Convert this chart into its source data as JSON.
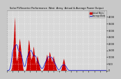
{
  "title": "Solar PV/Inverter Performance  West  Array  Actual & Average Power Output",
  "bg_color": "#c8c8c8",
  "plot_bg_color": "#d8d8d8",
  "grid_color": "#ffffff",
  "bar_color": "#cc0000",
  "avg_color": "#0000cc",
  "text_color": "#000000",
  "ylim": [
    0,
    4500
  ],
  "y_ticks": [
    0,
    500,
    1000,
    1500,
    2000,
    2500,
    3000,
    3500,
    4000
  ],
  "legend_actual": "Actual Watts",
  "legend_avg": "Average Watts",
  "data_values": [
    0,
    0,
    0,
    0,
    0,
    0,
    0,
    0,
    0,
    0,
    0,
    0,
    0,
    0,
    50,
    100,
    200,
    400,
    700,
    1000,
    1400,
    1800,
    2200,
    2600,
    3000,
    3400,
    4000,
    3600,
    2800,
    2000,
    1400,
    1000,
    800,
    700,
    800,
    900,
    1000,
    1200,
    1400,
    1600,
    1800,
    2000,
    2200,
    2400,
    2200,
    2000,
    1800,
    1600,
    1400,
    1200,
    1000,
    800,
    600,
    400,
    200,
    100,
    50,
    0,
    0,
    0,
    0,
    0,
    0,
    0,
    50,
    100,
    200,
    400,
    700,
    1000,
    1300,
    1600,
    1900,
    2100,
    2300,
    2200,
    2000,
    1800,
    1600,
    1400,
    1200,
    1000,
    900,
    800,
    900,
    1000,
    1100,
    1200,
    1400,
    1600,
    1800,
    1700,
    1500,
    1300,
    1100,
    900,
    700,
    500,
    600,
    700,
    800,
    900,
    1000,
    1100,
    1000,
    900,
    800,
    700,
    600,
    500,
    400,
    300,
    200,
    100,
    50,
    0,
    0,
    0,
    0,
    0,
    0,
    0,
    0,
    50,
    100,
    150,
    200,
    300,
    400,
    500,
    600,
    700,
    800,
    900,
    1000,
    1100,
    1200,
    1100,
    1000,
    900,
    800,
    700,
    900,
    1100,
    1300,
    1400,
    1300,
    1200,
    1100,
    1000,
    900,
    800,
    700,
    600,
    700,
    800,
    900,
    1000,
    1100,
    1000,
    900,
    800,
    700,
    600,
    500,
    400,
    300,
    200,
    100,
    50,
    0,
    0,
    0,
    0,
    0,
    0,
    0,
    0,
    0,
    0,
    0,
    0,
    0,
    0,
    50,
    100,
    200,
    300,
    400,
    500,
    600,
    700,
    800,
    900,
    800,
    700,
    600,
    500,
    400,
    300,
    200,
    100,
    50,
    0,
    0,
    0,
    0,
    0,
    0,
    0,
    0,
    0,
    0,
    0,
    0,
    0,
    0,
    0,
    0,
    0,
    0,
    0,
    0,
    0,
    0,
    0,
    0,
    0,
    0,
    0,
    0,
    0,
    0,
    0,
    0,
    0,
    0,
    0,
    0,
    0,
    0,
    0,
    0,
    0,
    0,
    0,
    0,
    0,
    0,
    0,
    0,
    0,
    0,
    0,
    0,
    0,
    0,
    0,
    0,
    0,
    0,
    0,
    0,
    0,
    0,
    0,
    0,
    0,
    0,
    0,
    0,
    0,
    0,
    0,
    0,
    0,
    0,
    0,
    0,
    0,
    0,
    0,
    0,
    0,
    0,
    0,
    0,
    0,
    0,
    0,
    0,
    0,
    0,
    0,
    0,
    0,
    0,
    0,
    0,
    0,
    0,
    0,
    0,
    0,
    0,
    0,
    0,
    0,
    0,
    0,
    0,
    0,
    0,
    0,
    0,
    0,
    0,
    0,
    0,
    0,
    0,
    0,
    0,
    0,
    0,
    0,
    0,
    0,
    0,
    0,
    0,
    0,
    0,
    0,
    0,
    0,
    0,
    0,
    0
  ]
}
